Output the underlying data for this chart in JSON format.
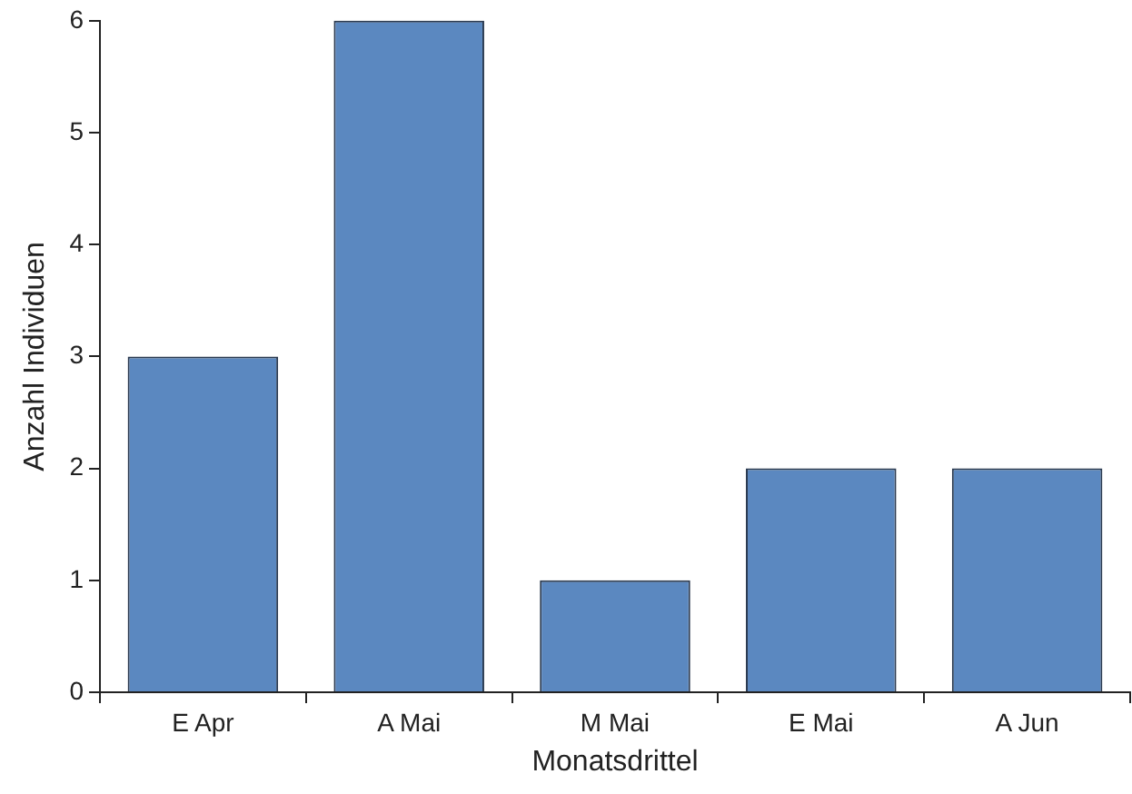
{
  "chart_data": {
    "type": "bar",
    "xlabel": "Monatsdrittel",
    "ylabel": "Anzahl Individuen",
    "categories": [
      "E Apr",
      "A Mai",
      "M Mai",
      "E Mai",
      "A Jun"
    ],
    "values": [
      3,
      6,
      1,
      2,
      2
    ],
    "color": "#5b88c0",
    "ylim": [
      0,
      6
    ],
    "yticks": [
      0,
      1,
      2,
      3,
      4,
      5,
      6
    ],
    "grid": false,
    "legend": false
  }
}
